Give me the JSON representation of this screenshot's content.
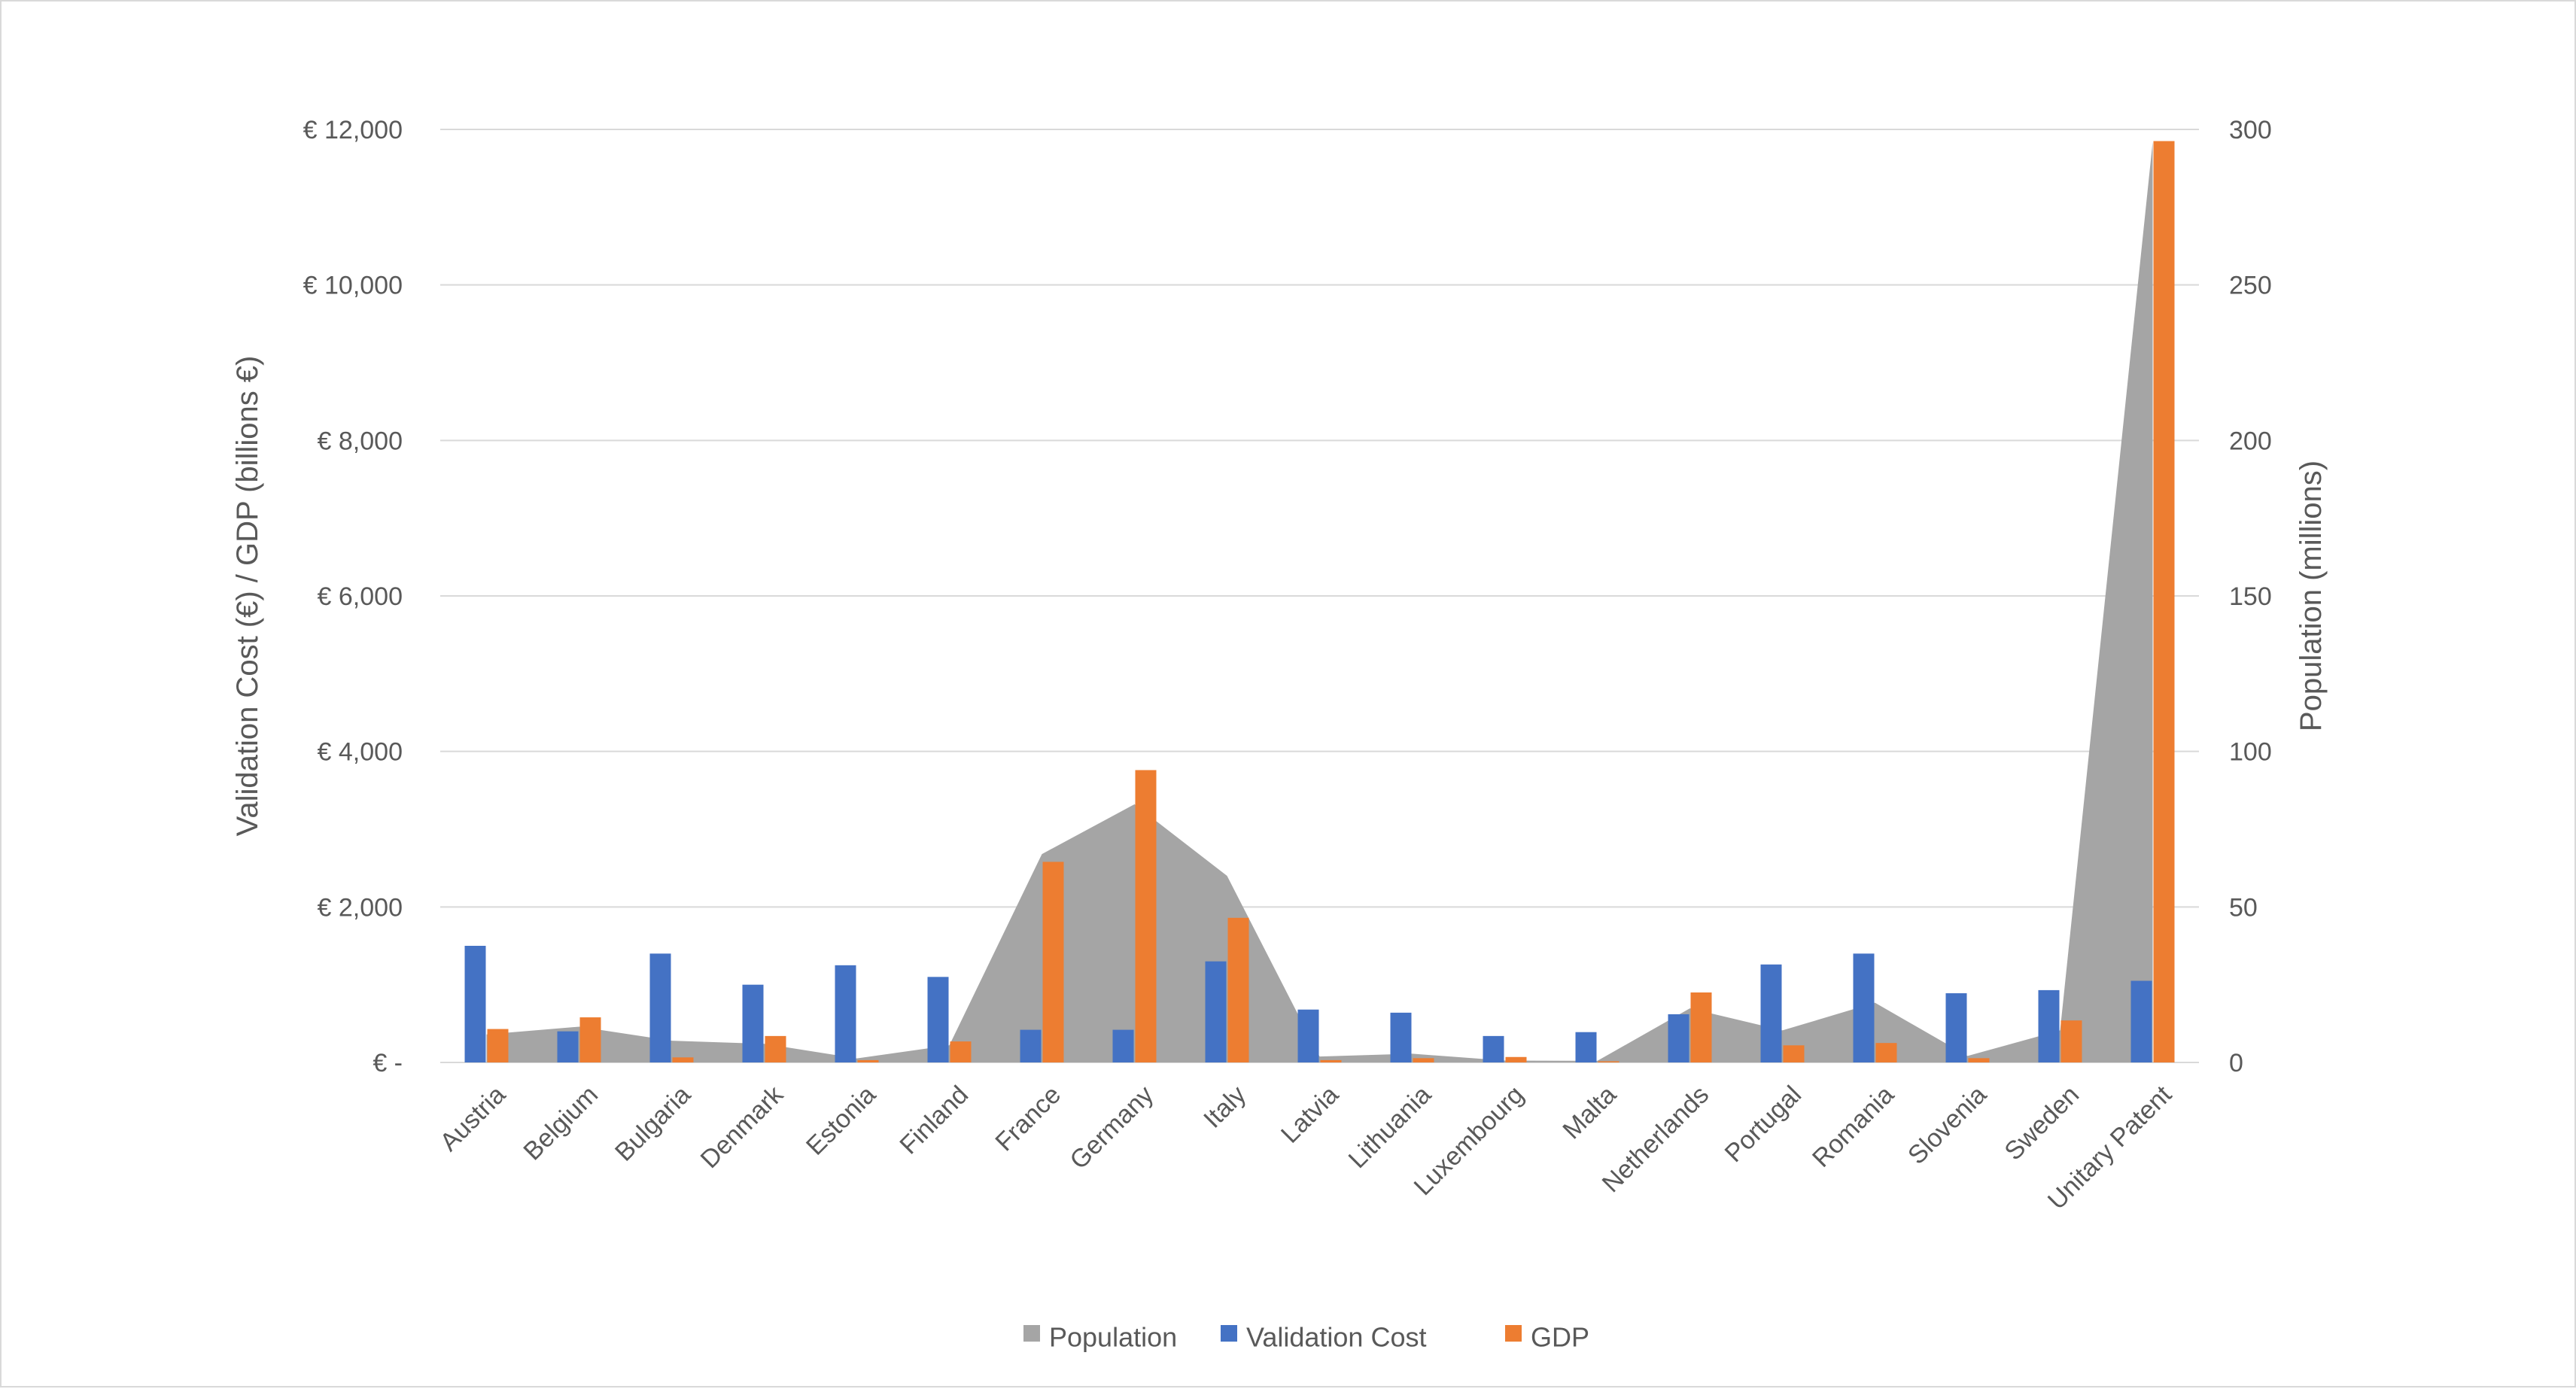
{
  "chart_data": {
    "type": "bar",
    "categories": [
      "Austria",
      "Belgium",
      "Bulgaria",
      "Denmark",
      "Estonia",
      "Finland",
      "France",
      "Germany",
      "Italy",
      "Latvia",
      "Lithuania",
      "Luxembourg",
      "Malta",
      "Netherlands",
      "Portugal",
      "Romania",
      "Slovenia",
      "Sweden",
      "Unitary Patent"
    ],
    "series": [
      {
        "name": "Population",
        "chart_type": "area",
        "axis": "right",
        "color": "#a5a5a5",
        "values": [
          9,
          11.5,
          7,
          6,
          1.3,
          5.5,
          67,
          83,
          60,
          1.9,
          2.8,
          0.6,
          0.5,
          17.4,
          10.3,
          19.2,
          2.1,
          10.3,
          296
        ]
      },
      {
        "name": "Validation Cost",
        "chart_type": "bar",
        "axis": "left",
        "color": "#4472c4",
        "values": [
          1500,
          400,
          1400,
          1000,
          1250,
          1100,
          420,
          420,
          1300,
          680,
          640,
          340,
          390,
          620,
          1260,
          1400,
          890,
          930,
          1050
        ]
      },
      {
        "name": "GDP",
        "chart_type": "bar",
        "axis": "left",
        "color": "#ed7d31",
        "values": [
          430,
          580,
          65,
          340,
          30,
          270,
          2580,
          3760,
          1860,
          30,
          55,
          70,
          15,
          900,
          220,
          250,
          55,
          540,
          11850
        ]
      }
    ],
    "y_left": {
      "label": "Validation Cost (€) / GDP (billions €)",
      "ylim": [
        0,
        12000
      ],
      "tick_labels": [
        "€ -",
        "€ 2,000",
        "€ 4,000",
        "€ 6,000",
        "€ 8,000",
        "€ 10,000",
        "€ 12,000"
      ]
    },
    "y_right": {
      "label": "Population (millions)",
      "ylim": [
        0,
        300
      ],
      "tick_labels": [
        "0",
        "50",
        "100",
        "150",
        "200",
        "250",
        "300"
      ]
    },
    "grid": true,
    "legend_position": "bottom"
  }
}
